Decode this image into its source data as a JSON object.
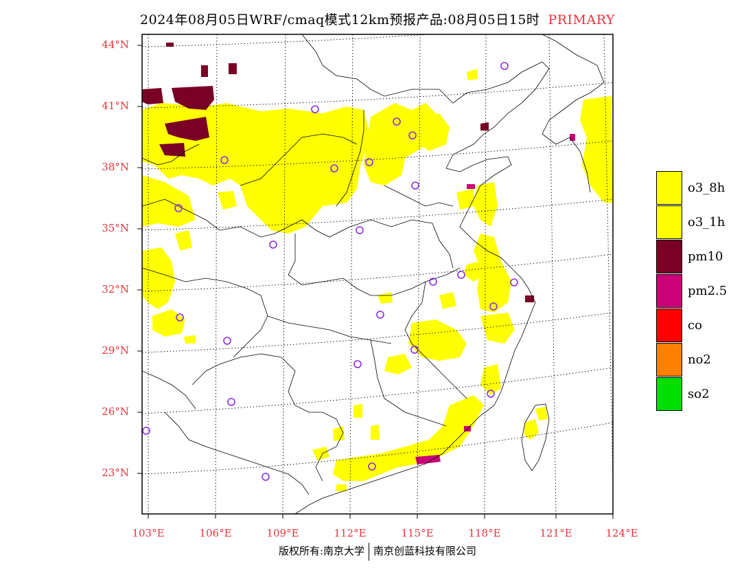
{
  "title": {
    "main": "2024年08月05日WRF/cmaq模式12km预报产品:08月05日15时",
    "tag": "PRIMARY"
  },
  "axes": {
    "lat_labels": [
      "44°N",
      "41°N",
      "38°N",
      "35°N",
      "32°N",
      "29°N",
      "26°N",
      "23°N"
    ],
    "lon_labels": [
      "103°E",
      "106°E",
      "109°E",
      "112°E",
      "115°E",
      "118°E",
      "121°E",
      "124°E"
    ]
  },
  "legend": [
    {
      "label": "o3_8h",
      "color": "#ffff00"
    },
    {
      "label": "o3_1h",
      "color": "#ffff00"
    },
    {
      "label": "pm10",
      "color": "#7a0026"
    },
    {
      "label": "pm2.5",
      "color": "#cc0077"
    },
    {
      "label": "co",
      "color": "#ff0000"
    },
    {
      "label": "no2",
      "color": "#ff8000"
    },
    {
      "label": "so2",
      "color": "#00dd00"
    }
  ],
  "footer": {
    "left": "版权所有:南京大学",
    "right": "南京创蓝科技有限公司"
  },
  "colors": {
    "axis_label": "#e8343b",
    "station_marker": "#8a2be2",
    "o3": "#ffff00",
    "pm10": "#7a0026",
    "pm25": "#cc0077"
  }
}
